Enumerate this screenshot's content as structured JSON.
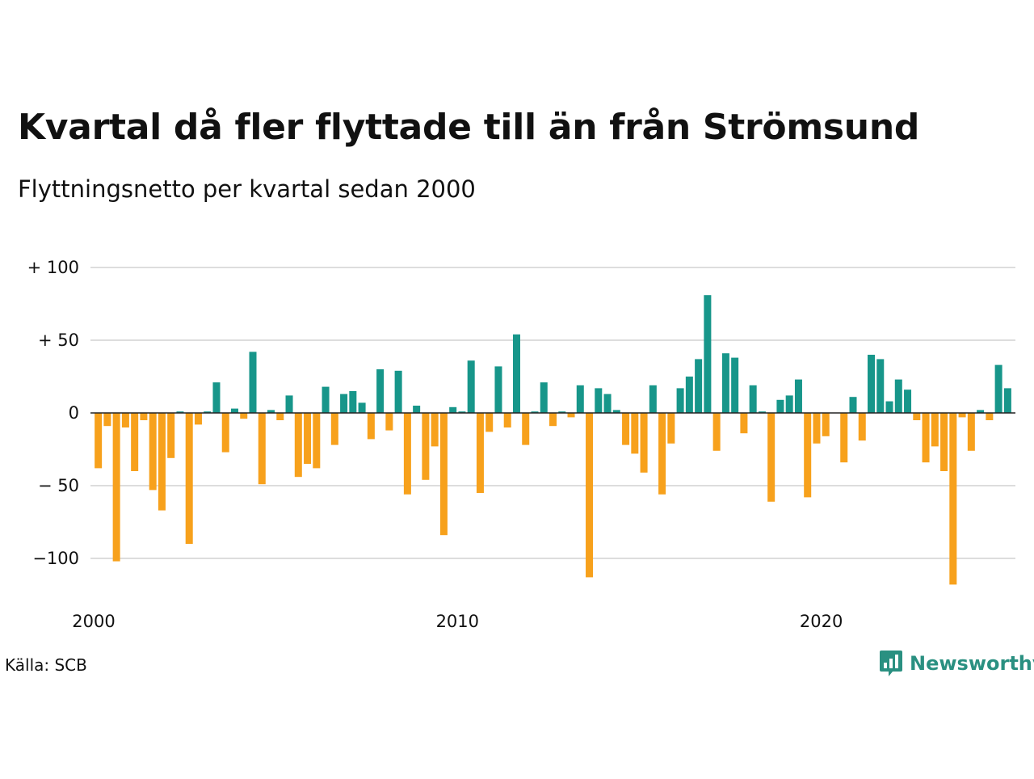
{
  "title": "Kvartal då fler flyttade till än från Strömsund",
  "subtitle": "Flyttningsnetto per kvartal sedan 2000",
  "source": "Källa: SCB",
  "brand": "Newsworthy",
  "colors": {
    "positive": "#17968a",
    "negative": "#f7a11c",
    "grid": "#dddddd",
    "brand": "#2a9081"
  },
  "chart_data": {
    "type": "bar",
    "title": "Kvartal då fler flyttade till än från Strömsund",
    "subtitle": "Flyttningsnetto per kvartal sedan 2000",
    "ylim": [
      -120,
      100
    ],
    "yticks": [
      {
        "value": 100,
        "label": "+ 100"
      },
      {
        "value": 50,
        "label": "+  50"
      },
      {
        "value": 0,
        "label": "0"
      },
      {
        "value": -50,
        "label": "− 50"
      },
      {
        "value": -100,
        "label": "−100"
      }
    ],
    "xticks": [
      {
        "year": 2000,
        "label": "2000"
      },
      {
        "year": 2010,
        "label": "2010"
      },
      {
        "year": 2020,
        "label": "2020"
      }
    ],
    "start_year": 2000,
    "grid": true,
    "values": [
      -38,
      -9,
      -102,
      -10,
      -40,
      -5,
      -53,
      -67,
      -31,
      1,
      -90,
      -8,
      1,
      21,
      -27,
      3,
      -4,
      42,
      -49,
      2,
      -5,
      12,
      -44,
      -35,
      -38,
      18,
      -22,
      13,
      15,
      7,
      -18,
      30,
      -12,
      29,
      -56,
      5,
      -46,
      -23,
      -84,
      4,
      1,
      36,
      -55,
      -13,
      32,
      -10,
      54,
      -22,
      1,
      21,
      -9,
      1,
      -3,
      19,
      -113,
      17,
      13,
      2,
      -22,
      -28,
      -41,
      19,
      -56,
      -21,
      17,
      25,
      37,
      81,
      -26,
      41,
      38,
      -14,
      19,
      1,
      -61,
      9,
      12,
      23,
      -58,
      -21,
      -16,
      0,
      -34,
      11,
      -19,
      40,
      37,
      8,
      23,
      16,
      -5,
      -34,
      -23,
      -40,
      -118,
      -3,
      -26,
      2,
      -5,
      33,
      17
    ]
  }
}
